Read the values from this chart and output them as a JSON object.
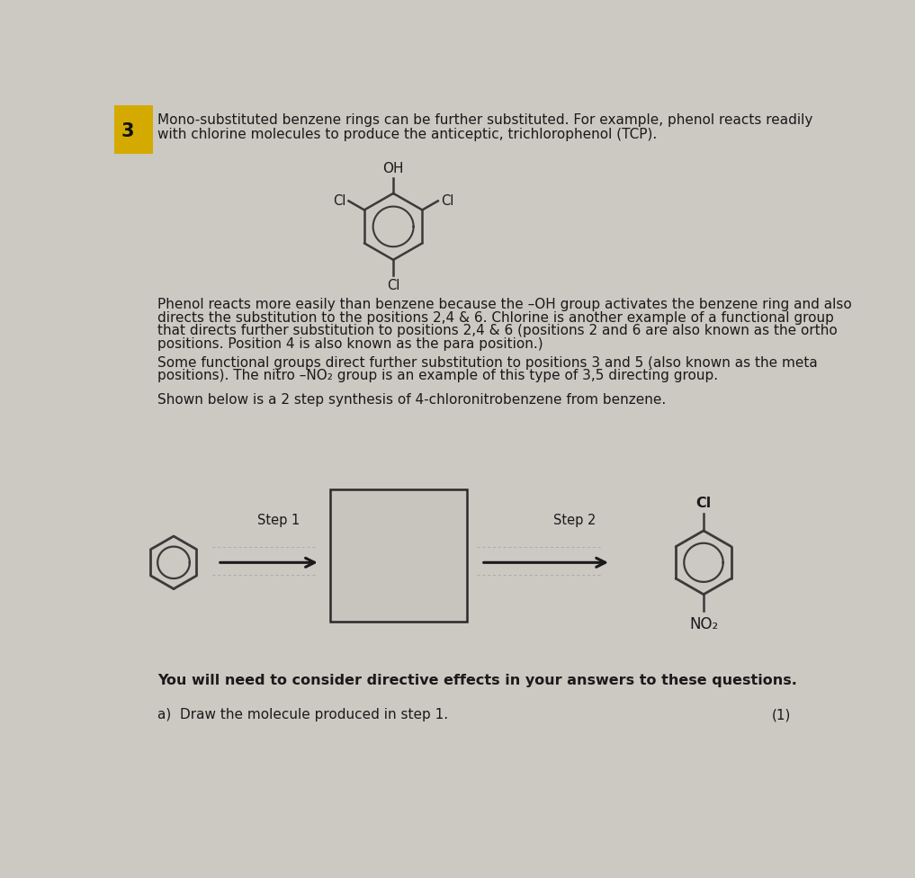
{
  "bg_color": "#ccc8c2",
  "paper_color": "#cdc9c3",
  "text_color": "#1a1a1a",
  "title_number": "3",
  "line1": "Mono-substituted benzene rings can be further substituted. For example, phenol reacts readily",
  "line2": "with chlorine molecules to produce the anticeptic, trichlorophenol (TCP).",
  "para1_line1": "Phenol reacts more easily than benzene because the –OH group activates the benzene ring and also",
  "para1_line2": "directs the substitution to the positions 2,4 & 6. Chlorine is another example of a functional group",
  "para1_line3": "that directs further substitution to positions 2,4 & 6 (positions 2 and 6 are also known as the ortho",
  "para1_line4": "positions. Position 4 is also known as the para position.)",
  "para2_line1": "Some functional groups direct further substitution to positions 3 and 5 (also known as the meta",
  "para2_line2": "positions). The nitro –NO₂ group is an example of this type of 3,5 directing group.",
  "para3": "Shown below is a 2 step synthesis of 4-chloronitrobenzene from benzene.",
  "step1_label": "Step 1",
  "step2_label": "Step 2",
  "footer_line1": "You will need to consider directive effects in your answers to these questions.",
  "footer_q": "a)  Draw the molecule produced in step 1.",
  "footer_mark": "(1)",
  "yellow_color": "#d4aa00",
  "mol_color": "#3a3a3a",
  "box_color": "#c8c4be",
  "arrow_color": "#1a1a1a",
  "reagent_line_color": "#aaaaaa"
}
